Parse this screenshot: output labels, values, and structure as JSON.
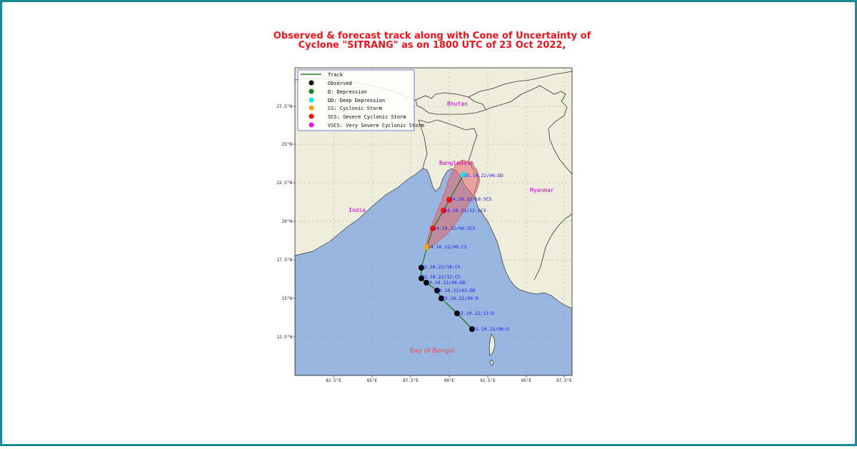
{
  "title": {
    "line1": "Observed & forecast track along with Cone of Uncertainty of",
    "line2": "Cyclone \"SITRANG\" as on 1800 UTC of 23 Oct 2022,"
  },
  "axes": {
    "lon_ticks": [
      "82.5°E",
      "85°E",
      "87.5°E",
      "90°E",
      "92.5°E",
      "95°E",
      "97.5°E"
    ],
    "lat_ticks": [
      "27.5°N",
      "25°N",
      "22.5°N",
      "20°N",
      "17.5°N",
      "15°N",
      "12.5°N"
    ]
  },
  "colors": {
    "land": "#efeedd",
    "sea": "#98b6e0",
    "track": "#1e7d1e",
    "cone": "#e2666a",
    "observed": "#000000",
    "D": "#1e7d1e",
    "DD": "#22e0f0",
    "CS": "#ffa500",
    "SCS": "#ee1111",
    "VSCS": "#ee11ee",
    "region_label": "#cc00cc",
    "sea_label": "#e05050",
    "point_label": "#1a1aee"
  },
  "legend": {
    "track": "Track",
    "observed": "Observed",
    "D": "D: Depression",
    "DD": "DD: Deep Depression",
    "CS": "CS: Cyclonic Storm",
    "SCS": "SCS: Severe Cyclonic Storm",
    "VSCS": "VSCS: Very Severe Cyclonic Storm"
  },
  "regions": {
    "bhutan": "Bhutan",
    "bangladesh": "Bangladesh",
    "myanmar": "Myanmar",
    "india": "India",
    "bay": "Bay of Bengal"
  },
  "points": [
    {
      "label": "22.10.22/06:D",
      "type": "observed"
    },
    {
      "label": "22.10.22/12:D",
      "type": "observed"
    },
    {
      "label": "23.10.22/00:D",
      "type": "observed"
    },
    {
      "label": "23.10.22/03:DD",
      "type": "observed"
    },
    {
      "label": "23.10.22/06:DD",
      "type": "observed"
    },
    {
      "label": "23.10.22/12:CS",
      "type": "observed"
    },
    {
      "label": "23.10.22/18:CS",
      "type": "observed"
    },
    {
      "label": "24.10.22/00:CS",
      "type": "CS"
    },
    {
      "label": "24.10.22/06:SCS",
      "type": "SCS"
    },
    {
      "label": "24.10.22/12:SCS",
      "type": "SCS"
    },
    {
      "label": "24.10.22/18:SCS",
      "type": "SCS"
    },
    {
      "label": "25.10.22/06:DD",
      "type": "DD"
    }
  ]
}
